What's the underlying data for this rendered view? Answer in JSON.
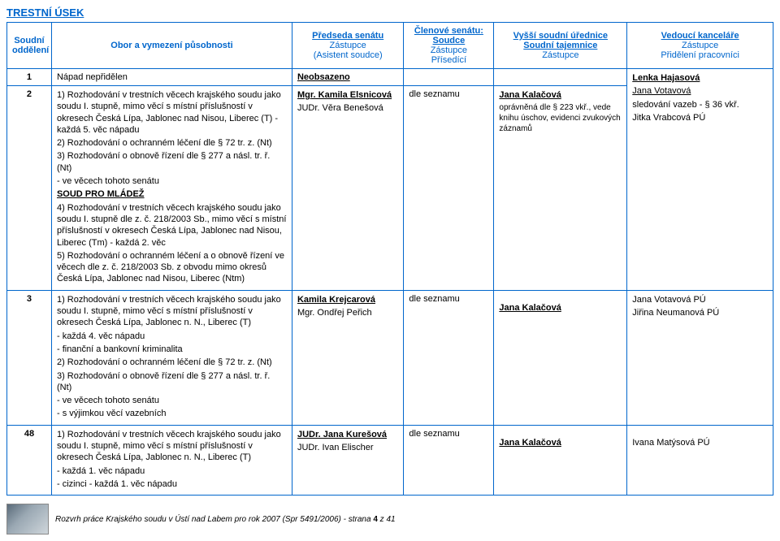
{
  "section_title": "TRESTNÍ ÚSEK",
  "header": {
    "col1": "Soudní oddělení",
    "col2": "Obor a vymezení působnosti",
    "col3_l1": "Předseda senátu",
    "col3_l2": "Zástupce",
    "col3_l3": "(Asistent soudce)",
    "col4_l1": "Členové senátu:",
    "col4_l2": "Soudce",
    "col4_l3": "Zástupce",
    "col4_l4": "Přísedící",
    "col5_l1": "Vyšší soudní úřednice",
    "col5_l2": "Soudní tajemnice",
    "col5_l3": "Zástupce",
    "col6_l1": "Vedoucí kanceláře",
    "col6_l2": "Zástupce",
    "col6_l3": "Přidělení pracovníci"
  },
  "rows": {
    "r1": {
      "num": "1",
      "c2": "Nápad nepřidělen",
      "c3": "Neobsazeno",
      "c6_l1": "Lenka Hajasová"
    },
    "r2": {
      "num": "2",
      "c2_l1": "1) Rozhodování v trestních věcech krajského soudu jako soudu I. stupně, mimo věcí s místní příslušností v okresech Česká Lípa, Jablonec nad Nisou, Liberec (T) - každá 5. věc nápadu",
      "c2_l2": "2) Rozhodování o ochranném léčení dle § 72 tr. z. (Nt)",
      "c2_l3": "3) Rozhodování o obnově řízení dle § 277 a násl. tr. ř. (Nt)",
      "c2_l4": "- ve věcech tohoto senátu",
      "c2_l5": "SOUD PRO MLÁDEŽ",
      "c2_l6": "4) Rozhodování v trestních věcech krajského soudu jako soudu I. stupně dle z. č. 218/2003 Sb., mimo věcí s místní příslušností v okresech Česká Lípa, Jablonec nad Nisou, Liberec (Tm) - každá 2. věc",
      "c2_l7": "5) Rozhodování o ochranném léčení a o obnově řízení ve věcech dle z. č. 218/2003 Sb. z obvodu mimo okresů Česká Lípa, Jablonec nad Nisou, Liberec (Ntm)",
      "c3_l1": "Mgr. Kamila Elsnicová",
      "c3_l2": "JUDr. Věra Benešová",
      "c4": "dle seznamu",
      "c5_l1": "Jana Kalačová",
      "c5_l2": "oprávněná dle § 223 vkř., vede knihu úschov, evidenci zvukových záznamů",
      "c6_l1": "Jana Votavová",
      "c6_l2": "sledování vazeb - § 36 vkř.",
      "c6_l3": "Jitka Vrabcová PÚ"
    },
    "r3": {
      "num": "3",
      "c2_l1": "1) Rozhodování v trestních věcech krajského soudu jako soudu I. stupně, mimo věcí s místní příslušností v okresech Česká Lípa, Jablonec n. N., Liberec (T)",
      "c2_l2": "  - každá 4. věc nápadu",
      "c2_l3": "  - finanční a bankovní kriminalita",
      "c2_l4": "2) Rozhodování o ochranném léčení dle § 72 tr. z. (Nt)",
      "c2_l5": "3) Rozhodování o obnově řízení dle § 277 a násl. tr. ř. (Nt)",
      "c2_l6": "- ve věcech tohoto senátu",
      "c2_l7": "- s výjimkou věcí vazebních",
      "c3_l1": "Kamila Krejcarová",
      "c3_l2": "Mgr. Ondřej Peřich",
      "c4": "dle seznamu",
      "c5_l1": "Jana Kalačová",
      "c6_l1": "Jana Votavová PÚ",
      "c6_l2": "Jiřina Neumanová PÚ"
    },
    "r48": {
      "num": "48",
      "c2_l1": "1) Rozhodování v trestních věcech krajského soudu jako soudu I. stupně, mimo věcí s místní příslušností v okresech Česká Lípa, Jablonec n. N., Liberec (T)",
      "c2_l2": "  - každá 1. věc nápadu",
      "c2_l3": "  - cizinci - každá 1. věc nápadu",
      "c3_l1": "JUDr. Jana Kurešová",
      "c3_l2": "JUDr. Ivan Elischer",
      "c4": "dle seznamu",
      "c5_l1": "Jana Kalačová",
      "c6_l1": "Ivana Matýsová PÚ"
    }
  },
  "footer": {
    "text": "Rozvrh práce Krajského soudu v Ústí nad Labem pro rok 2007 (Spr 5491/2006) - strana ",
    "page": "4",
    "of": " z 41"
  },
  "col_widths": [
    "52px",
    "280px",
    "130px",
    "105px",
    "155px",
    "170px"
  ]
}
